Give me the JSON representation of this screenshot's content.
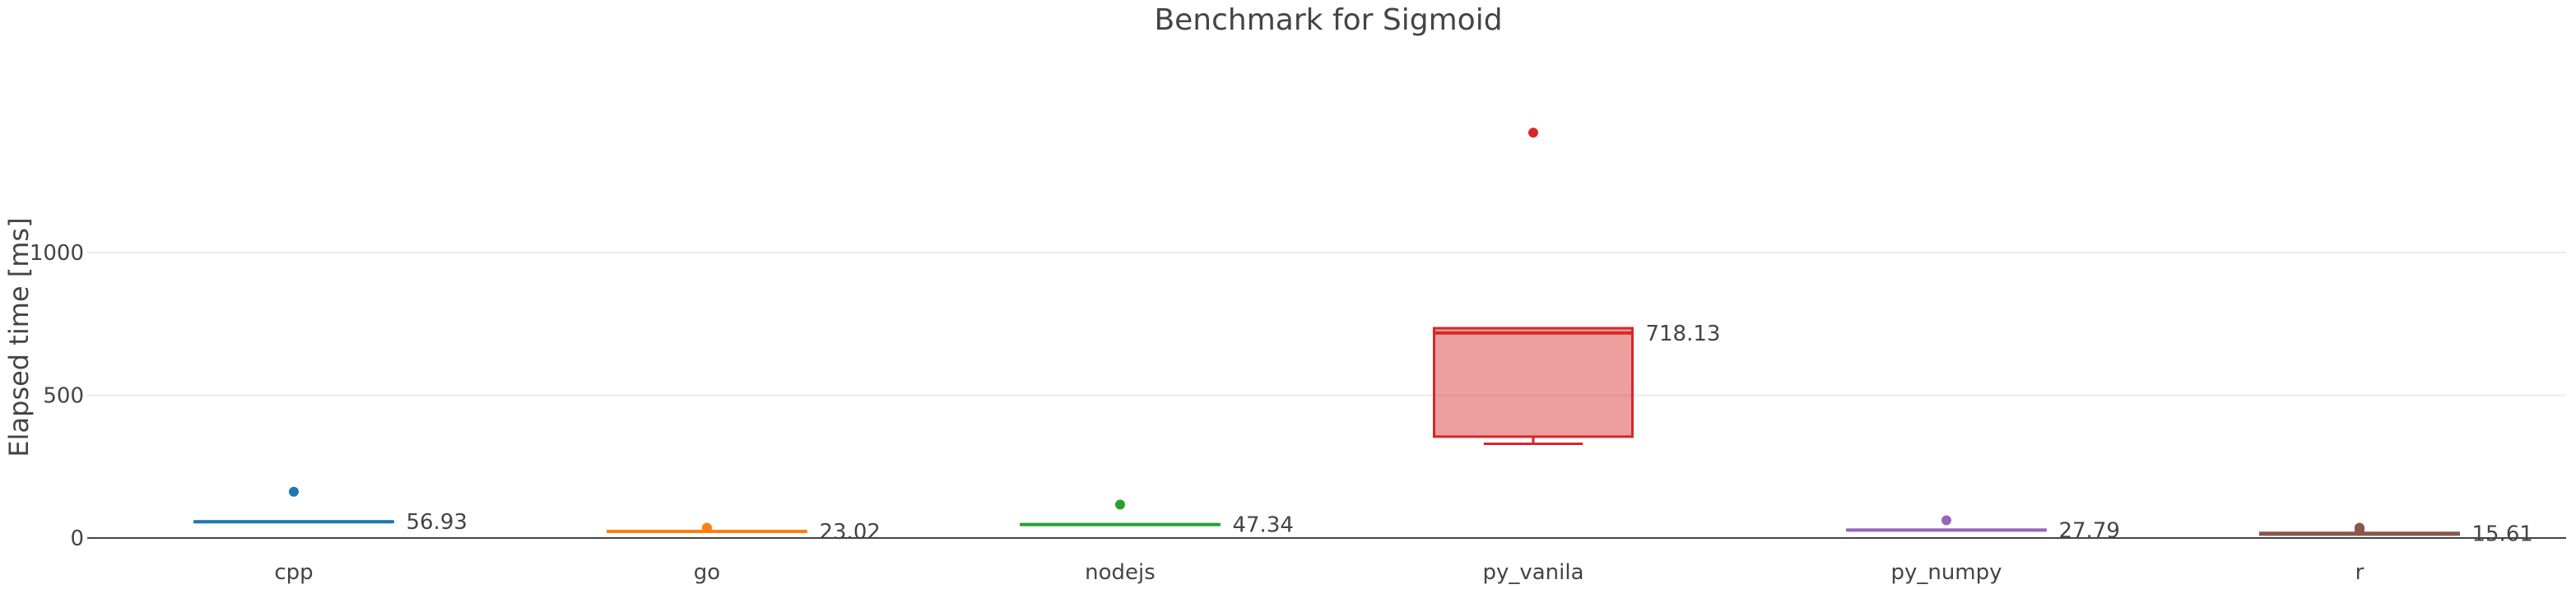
{
  "chart_data": {
    "type": "box",
    "title": "Benchmark for Sigmoid",
    "xlabel": "",
    "ylabel": "Elapsed time [ms]",
    "ylim": [
      0,
      1650
    ],
    "yticks": [
      0,
      500,
      1000
    ],
    "grid": true,
    "categories": [
      "cpp",
      "go",
      "nodejs",
      "py_vanila",
      "py_numpy",
      "r"
    ],
    "series": [
      {
        "category": "cpp",
        "color": "#1f77b4",
        "min": 55,
        "q1": 56,
        "median": 56.93,
        "q3": 58,
        "max": 60,
        "outliers": [
          162
        ],
        "label": "56.93"
      },
      {
        "category": "go",
        "color": "#ff7f0e",
        "min": 21,
        "q1": 22,
        "median": 23.02,
        "q3": 24,
        "max": 25,
        "outliers": [
          36
        ],
        "label": "23.02"
      },
      {
        "category": "nodejs",
        "color": "#2ca02c",
        "min": 45,
        "q1": 46,
        "median": 47.34,
        "q3": 48,
        "max": 49,
        "outliers": [
          117
        ],
        "label": "47.34"
      },
      {
        "category": "py_vanila",
        "color": "#d62728",
        "min": 330,
        "q1": 355,
        "median": 718.13,
        "q3": 735,
        "max": 735,
        "outliers": [
          1420
        ],
        "label": "718.13"
      },
      {
        "category": "py_numpy",
        "color": "#9467bd",
        "min": 26,
        "q1": 27,
        "median": 27.79,
        "q3": 29,
        "max": 30,
        "outliers": [
          62
        ],
        "label": "27.79"
      },
      {
        "category": "r",
        "color": "#8c564b",
        "min": 8,
        "q1": 12,
        "median": 15.61,
        "q3": 18,
        "max": 20,
        "outliers": [
          36,
          32,
          28
        ],
        "label": "15.61"
      }
    ]
  }
}
